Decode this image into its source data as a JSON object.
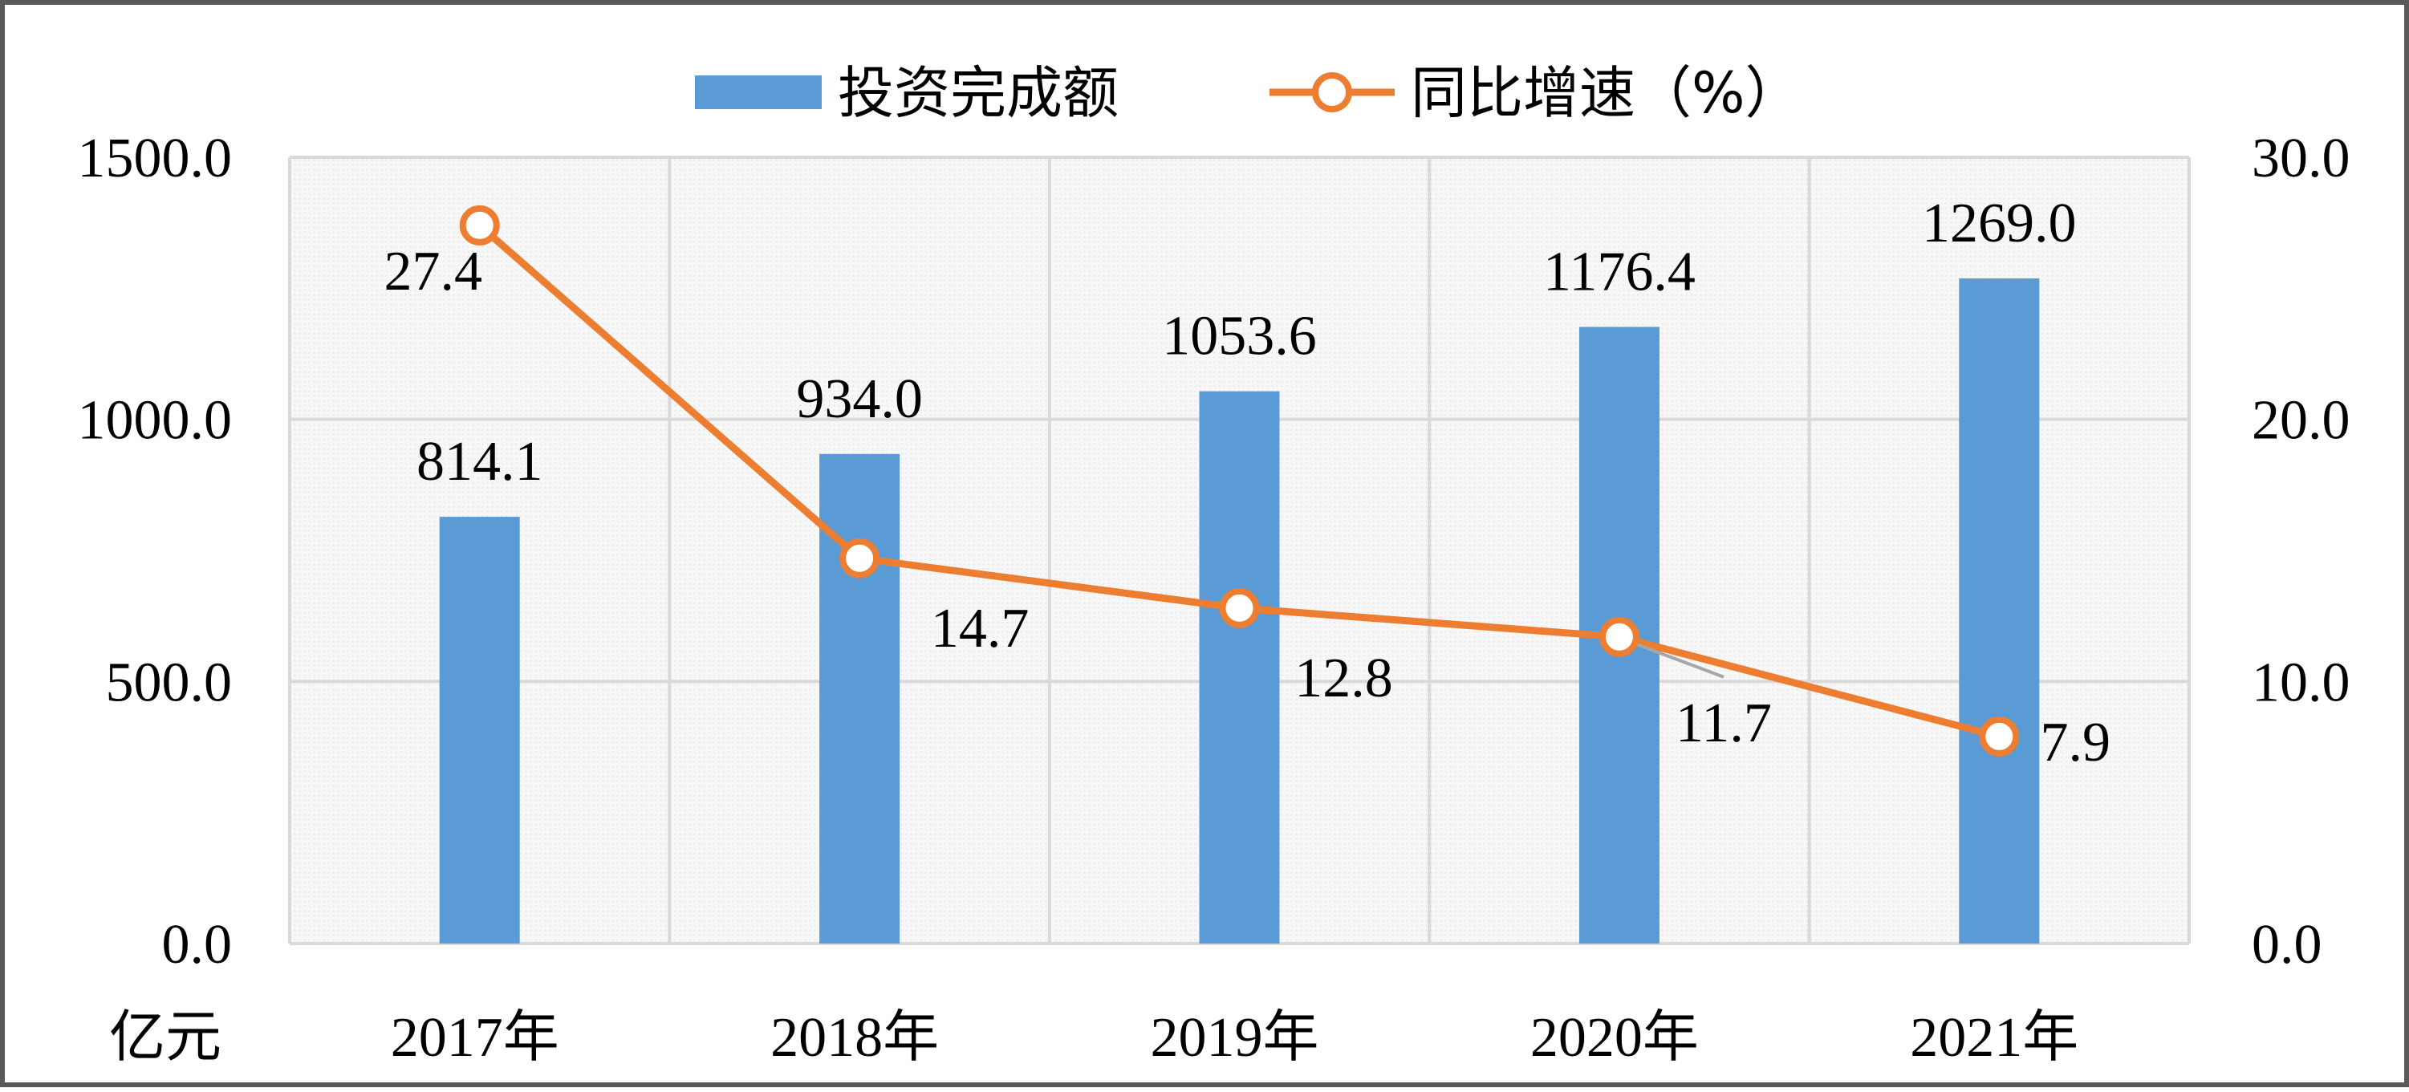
{
  "chart_data": {
    "type": "bar",
    "categories": [
      "2017年",
      "2018年",
      "2019年",
      "2020年",
      "2021年"
    ],
    "series": [
      {
        "name": "投资完成额",
        "type": "bar",
        "axis": "left",
        "values": [
          814.1,
          934.0,
          1053.6,
          1176.4,
          1269.0
        ],
        "labels": [
          "814.1",
          "934.0",
          "1053.6",
          "1176.4",
          "1269.0"
        ]
      },
      {
        "name": "同比增速（%）",
        "type": "line",
        "axis": "right",
        "values": [
          27.4,
          14.7,
          12.8,
          11.7,
          7.9
        ],
        "labels": [
          "27.4",
          "14.7",
          "12.8",
          "11.7",
          "7.9"
        ]
      }
    ],
    "y_left": {
      "unit": "亿元",
      "ylim": [
        0,
        1500
      ],
      "ticks": [
        "0.0",
        "500.0",
        "1000.0",
        "1500.0"
      ]
    },
    "y_right": {
      "ylim": [
        0,
        30
      ],
      "ticks": [
        "0.0",
        "10.0",
        "20.0",
        "30.0"
      ]
    },
    "grid": true,
    "legend_position": "top-center",
    "colors": {
      "bar": "#5b9bd5",
      "line": "#ed7d31",
      "grid": "#d9d9d9",
      "text": "#000000"
    }
  }
}
